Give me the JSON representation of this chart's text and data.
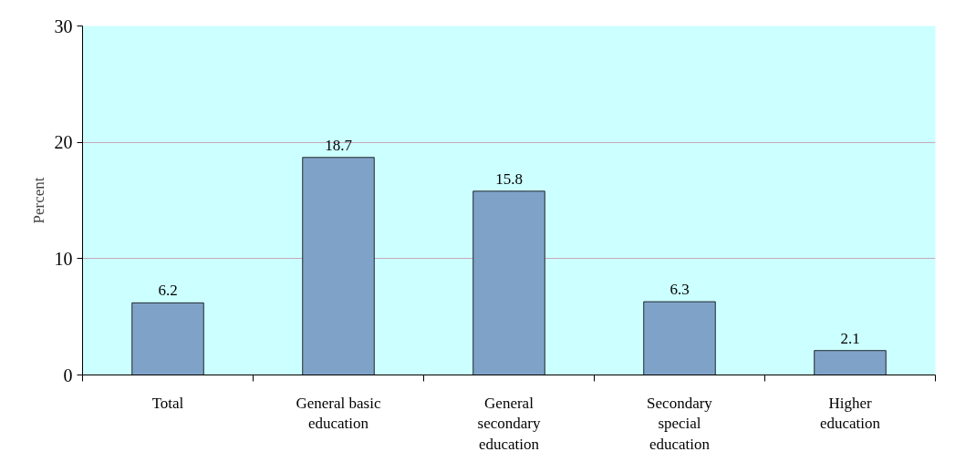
{
  "chart_data": {
    "type": "bar",
    "ylabel": "Percent",
    "categories": [
      "Total",
      "General basic education",
      "General secondary education",
      "Secondary special education",
      "Higher education"
    ],
    "values": [
      6.2,
      18.7,
      15.8,
      6.3,
      2.1
    ],
    "color": "#7fa3c8",
    "ylim": [
      0,
      30
    ],
    "yticks": [
      0,
      10,
      20,
      30
    ],
    "grid": "y",
    "data_labels": true
  }
}
